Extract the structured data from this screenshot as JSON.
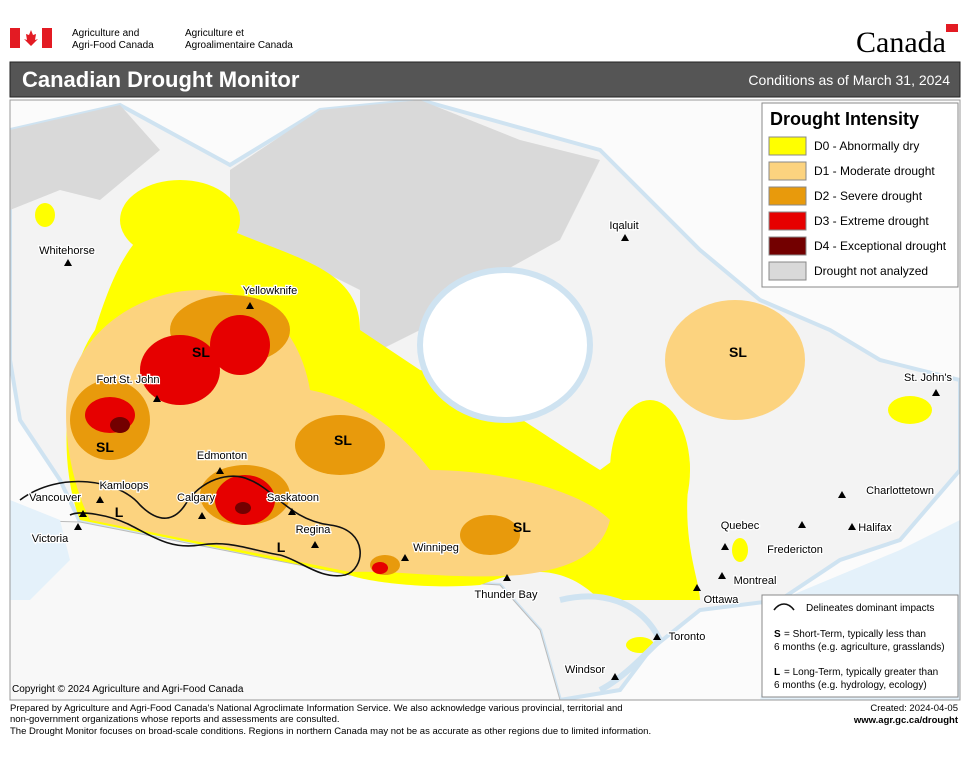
{
  "header": {
    "agency_en_line1": "Agriculture and",
    "agency_en_line2": "Agri-Food Canada",
    "agency_fr_line1": "Agriculture et",
    "agency_fr_line2": "Agroalimentaire Canada",
    "wordmark": "Canada"
  },
  "title_bar": {
    "title": "Canadian Drought Monitor",
    "conditions": "Conditions as of March 31, 2024"
  },
  "legend": {
    "title": "Drought Intensity",
    "items": [
      {
        "label": "D0 - Abnormally dry",
        "color": "#ffff00"
      },
      {
        "label": "D1 - Moderate drought",
        "color": "#fcd37f"
      },
      {
        "label": "D2 - Severe drought",
        "color": "#e89a0c"
      },
      {
        "label": "D3 - Extreme drought",
        "color": "#e60000"
      },
      {
        "label": "D4 - Exceptional drought",
        "color": "#730000"
      },
      {
        "label": "Drought not analyzed",
        "color": "#d9d9d9"
      }
    ]
  },
  "cities": [
    "Whitehorse",
    "Yellowknife",
    "Iqaluit",
    "Fort St. John",
    "St. John's",
    "Edmonton",
    "Kamloops",
    "Calgary",
    "Saskatoon",
    "Vancouver",
    "Victoria",
    "Regina",
    "Winnipeg",
    "Thunder Bay",
    "Quebec",
    "Fredericton",
    "Charlottetown",
    "Halifax",
    "Montreal",
    "Ottawa",
    "Toronto",
    "Windsor"
  ],
  "impact_labels": [
    "SL",
    "SL",
    "SL",
    "SL",
    "SL",
    "L",
    "L"
  ],
  "impacts_note": {
    "line_label": "Delineates dominant impacts",
    "short_term": {
      "code": "S",
      "lines": [
        "= Short-Term, typically less than",
        "6 months (e.g. agriculture, grasslands)"
      ]
    },
    "long_term": {
      "code": "L",
      "lines": [
        "= Long-Term, typically greater  than",
        "6 months (e.g. hydrology, ecology)"
      ]
    }
  },
  "copyright": "Copyright © 2024 Agriculture and Agri-Food Canada",
  "footer": {
    "lines": [
      "Prepared by Agriculture and Agri-Food Canada's National Agroclimate Information Service.  We also acknowledge various provincial, territorial and",
      "non-government organizations whose reports and assessments are consulted.",
      "The Drought Monitor focuses on broad-scale conditions.  Regions in northern Canada may not be as accurate as other regions due to limited information."
    ],
    "created": "Created: 2024-04-05",
    "url": "www.agr.gc.ca/drought"
  }
}
